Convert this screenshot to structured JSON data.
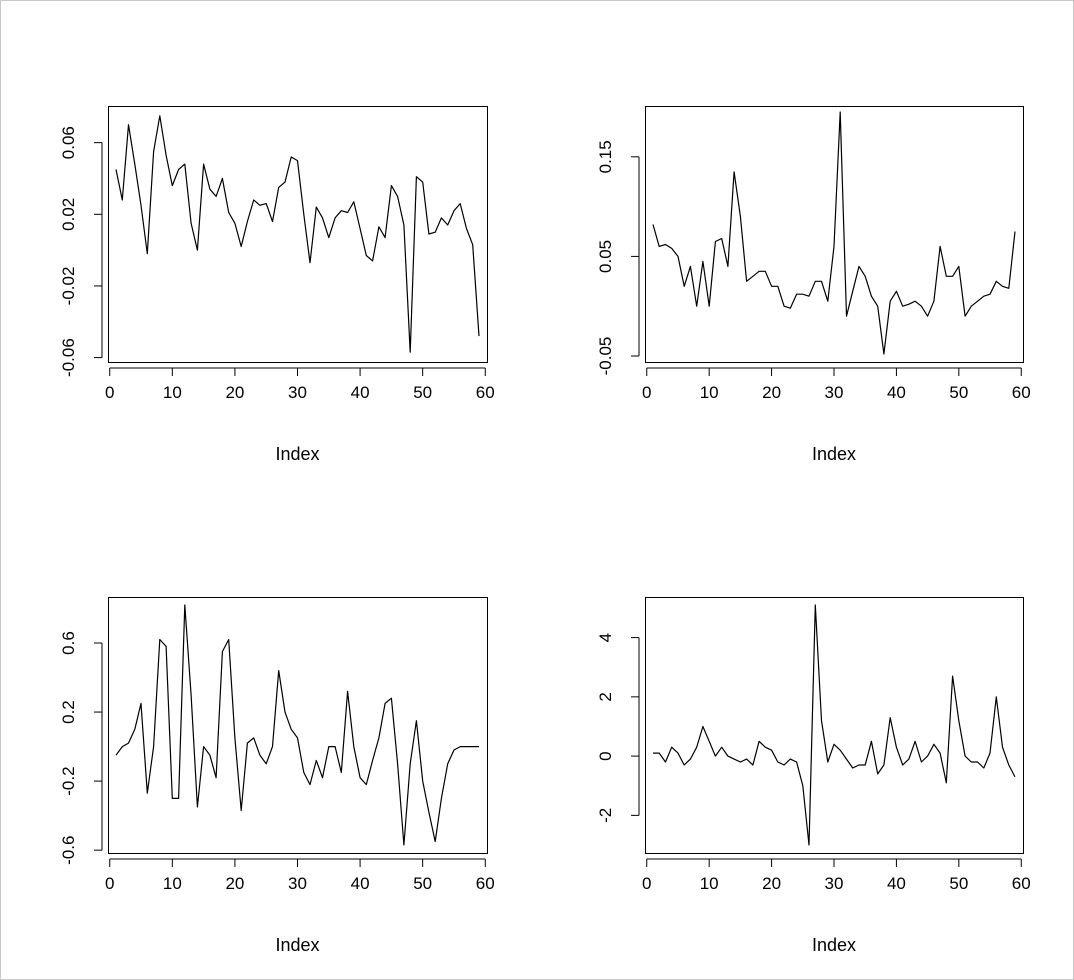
{
  "colors": {
    "background": "#ffffff",
    "ink": "#000000",
    "window_border": "#c8c8c8"
  },
  "chart_data": [
    {
      "type": "line",
      "xlabel": "Index",
      "ylabel": "",
      "xlim": [
        1,
        59
      ],
      "ylim": [
        -0.058,
        0.076
      ],
      "x_ticks": [
        0,
        10,
        20,
        30,
        40,
        50,
        60
      ],
      "x_tick_labels": [
        "0",
        "10",
        "20",
        "30",
        "40",
        "50",
        "60"
      ],
      "y_ticks": [
        -0.06,
        -0.02,
        0.02,
        0.06
      ],
      "y_tick_labels": [
        "-0.06",
        "-0.02",
        "0.02",
        "0.06"
      ],
      "series": [
        {
          "values": [
            0.045,
            0.028,
            0.07,
            0.048,
            0.025,
            -0.002,
            0.055,
            0.075,
            0.053,
            0.036,
            0.045,
            0.048,
            0.015,
            0.0,
            0.048,
            0.034,
            0.03,
            0.04,
            0.021,
            0.015,
            0.002,
            0.016,
            0.028,
            0.025,
            0.026,
            0.016,
            0.035,
            0.038,
            0.052,
            0.05,
            0.02,
            -0.007,
            0.024,
            0.018,
            0.007,
            0.018,
            0.022,
            0.021,
            0.027,
            0.012,
            -0.003,
            -0.006,
            0.013,
            0.007,
            0.036,
            0.03,
            0.014,
            -0.057,
            0.041,
            0.038,
            0.009,
            0.01,
            0.018,
            0.014,
            0.022,
            0.026,
            0.012,
            0.003,
            -0.048
          ]
        }
      ]
    },
    {
      "type": "line",
      "xlabel": "Index",
      "ylabel": "",
      "xlim": [
        1,
        59
      ],
      "ylim": [
        -0.048,
        0.193
      ],
      "x_ticks": [
        0,
        10,
        20,
        30,
        40,
        50,
        60
      ],
      "x_tick_labels": [
        "0",
        "10",
        "20",
        "30",
        "40",
        "50",
        "60"
      ],
      "y_ticks": [
        -0.05,
        0.05,
        0.15
      ],
      "y_tick_labels": [
        "-0.05",
        "0.05",
        "0.15"
      ],
      "series": [
        {
          "values": [
            0.082,
            0.06,
            0.062,
            0.058,
            0.05,
            0.02,
            0.04,
            0.0,
            0.045,
            0.0,
            0.065,
            0.068,
            0.04,
            0.135,
            0.09,
            0.025,
            0.03,
            0.035,
            0.035,
            0.02,
            0.02,
            0.0,
            -0.002,
            0.012,
            0.012,
            0.01,
            0.025,
            0.025,
            0.005,
            0.06,
            0.195,
            -0.01,
            0.015,
            0.04,
            0.03,
            0.01,
            0.0,
            -0.048,
            0.005,
            0.015,
            0.0,
            0.002,
            0.005,
            0.0,
            -0.01,
            0.005,
            0.06,
            0.03,
            0.03,
            0.04,
            -0.01,
            0.0,
            0.005,
            0.01,
            0.012,
            0.025,
            0.02,
            0.018,
            0.075
          ]
        }
      ]
    },
    {
      "type": "line",
      "xlabel": "Index",
      "ylabel": "",
      "xlim": [
        1,
        59
      ],
      "ylim": [
        -0.57,
        0.82
      ],
      "x_ticks": [
        0,
        10,
        20,
        30,
        40,
        50,
        60
      ],
      "x_tick_labels": [
        "0",
        "10",
        "20",
        "30",
        "40",
        "50",
        "60"
      ],
      "y_ticks": [
        -0.6,
        -0.2,
        0.2,
        0.6
      ],
      "y_tick_labels": [
        "-0.6",
        "-0.2",
        "0.2",
        "0.6"
      ],
      "series": [
        {
          "values": [
            -0.05,
            0.0,
            0.02,
            0.1,
            0.25,
            -0.27,
            0.0,
            0.62,
            0.58,
            -0.3,
            -0.3,
            0.82,
            0.3,
            -0.35,
            0.0,
            -0.05,
            -0.18,
            0.55,
            0.62,
            0.05,
            -0.37,
            0.02,
            0.05,
            -0.05,
            -0.1,
            0.0,
            0.44,
            0.2,
            0.1,
            0.05,
            -0.15,
            -0.22,
            -0.08,
            -0.18,
            0.0,
            0.0,
            -0.15,
            0.32,
            0.0,
            -0.18,
            -0.22,
            -0.08,
            0.05,
            0.25,
            0.28,
            -0.1,
            -0.57,
            -0.1,
            0.15,
            -0.2,
            -0.38,
            -0.55,
            -0.3,
            -0.1,
            -0.02,
            0.0,
            0.0,
            0.0,
            0.0
          ]
        }
      ]
    },
    {
      "type": "line",
      "xlabel": "Index",
      "ylabel": "",
      "xlim": [
        1,
        59
      ],
      "ylim": [
        -3.0,
        5.1
      ],
      "x_ticks": [
        0,
        10,
        20,
        30,
        40,
        50,
        60
      ],
      "x_tick_labels": [
        "0",
        "10",
        "20",
        "30",
        "40",
        "50",
        "60"
      ],
      "y_ticks": [
        -2,
        0,
        2,
        4
      ],
      "y_tick_labels": [
        "-2",
        "0",
        "2",
        "4"
      ],
      "series": [
        {
          "values": [
            0.1,
            0.1,
            -0.2,
            0.3,
            0.1,
            -0.3,
            -0.1,
            0.3,
            1.0,
            0.5,
            0.0,
            0.3,
            0.0,
            -0.1,
            -0.2,
            -0.1,
            -0.3,
            0.5,
            0.3,
            0.2,
            -0.2,
            -0.3,
            -0.1,
            -0.2,
            -1.0,
            -3.0,
            5.1,
            1.2,
            -0.2,
            0.4,
            0.2,
            -0.1,
            -0.4,
            -0.3,
            -0.3,
            0.5,
            -0.6,
            -0.3,
            1.3,
            0.3,
            -0.3,
            -0.1,
            0.5,
            -0.2,
            0.0,
            0.4,
            0.1,
            -0.9,
            2.7,
            1.2,
            0.0,
            -0.2,
            -0.2,
            -0.4,
            0.1,
            2.0,
            0.3,
            -0.3,
            -0.7
          ]
        }
      ]
    }
  ]
}
